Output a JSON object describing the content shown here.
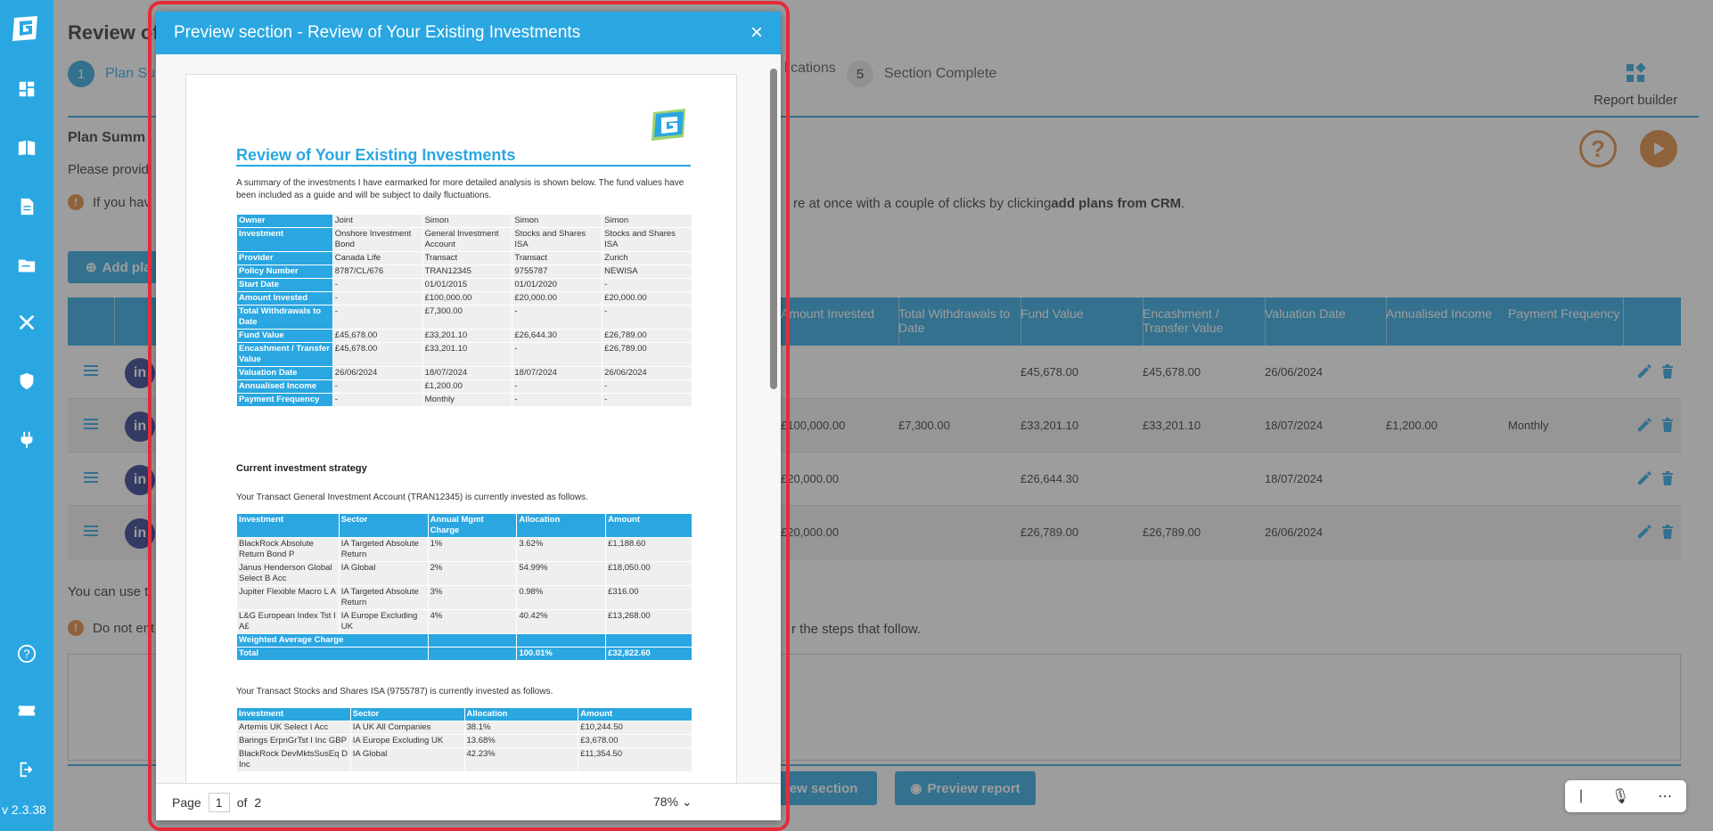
{
  "app": {
    "version": "v 2.3.38",
    "accent": "#2aa7e1",
    "orange": "#e08a3c",
    "highlight": "#e52b3a"
  },
  "sidebar": {
    "icons": [
      "logo-icon",
      "dashboard-icon",
      "book-icon",
      "document-icon",
      "folder-icon",
      "tools-icon",
      "shield-icon",
      "plug-icon",
      "help-icon",
      "ticket-icon",
      "logout-icon"
    ]
  },
  "page": {
    "title": "Review of",
    "steps": [
      {
        "num": "1",
        "label": "Plan Sum"
      },
      {
        "num": "",
        "label": "lications"
      },
      {
        "num": "5",
        "label": "Section Complete"
      }
    ],
    "report_builder": "Report builder",
    "section_title": "Plan Summ",
    "para": "Please provid",
    "info1_start": "If you hav",
    "info1_end": "re at once with a couple of clicks by clicking ",
    "info1_bold": "add plans from CRM",
    "info1_tail": ".",
    "add_button": "Add pla",
    "table": {
      "headers": [
        "Amount Invested",
        "Total Withdrawals to Date",
        "Fund Value",
        "Encashment / Transfer Value",
        "Valuation Date",
        "Annualised Income",
        "Payment Frequency"
      ],
      "rows": [
        {
          "amount": "",
          "withdrawals": "",
          "fund": "£45,678.00",
          "encash": "£45,678.00",
          "valdate": "26/06/2024",
          "income": "",
          "freq": ""
        },
        {
          "amount": "£100,000.00",
          "withdrawals": "£7,300.00",
          "fund": "£33,201.10",
          "encash": "£33,201.10",
          "valdate": "18/07/2024",
          "income": "£1,200.00",
          "freq": "Monthly"
        },
        {
          "amount": "£20,000.00",
          "withdrawals": "",
          "fund": "£26,644.30",
          "encash": "",
          "valdate": "18/07/2024",
          "income": "",
          "freq": ""
        },
        {
          "amount": "£20,000.00",
          "withdrawals": "",
          "fund": "£26,789.00",
          "encash": "£26,789.00",
          "valdate": "26/06/2024",
          "income": "",
          "freq": ""
        }
      ]
    },
    "bottom_text": "You can use t",
    "info2_start": "Do not ent",
    "info2_end": "r the steps that follow.",
    "btn_preview_section": "iew section",
    "btn_preview_report": "Preview report"
  },
  "modal": {
    "title": "Preview section - Review of Your Existing Investments",
    "close": "×",
    "footer": {
      "page_label": "Page",
      "page_value": "1",
      "of_label": "of",
      "total": "2",
      "zoom": "78%"
    }
  },
  "doc": {
    "title": "Review of Your Existing Investments",
    "intro": "A summary of the investments I have earmarked for more detailed analysis is shown below. The fund values have been included as a guide and will be subject to daily fluctuations.",
    "summary": {
      "rows": [
        {
          "k": "Owner",
          "v": [
            "Joint",
            "Simon",
            "Simon",
            "Simon"
          ]
        },
        {
          "k": "Investment",
          "v": [
            "Onshore Investment Bond",
            "General Investment Account",
            "Stocks and Shares ISA",
            "Stocks and Shares ISA"
          ]
        },
        {
          "k": "Provider",
          "v": [
            "Canada Life",
            "Transact",
            "Transact",
            "Zurich"
          ]
        },
        {
          "k": "Policy Number",
          "v": [
            "8787/CL/676",
            "TRAN12345",
            "9755787",
            "NEWISA"
          ]
        },
        {
          "k": "Start Date",
          "v": [
            "-",
            "01/01/2015",
            "01/01/2020",
            "-"
          ]
        },
        {
          "k": "Amount Invested",
          "v": [
            "-",
            "£100,000.00",
            "£20,000.00",
            "£20,000.00"
          ]
        },
        {
          "k": "Total Withdrawals to Date",
          "v": [
            "-",
            "£7,300.00",
            "-",
            "-"
          ]
        },
        {
          "k": "Fund Value",
          "v": [
            "£45,678.00",
            "£33,201.10",
            "£26,644.30",
            "£26,789.00"
          ]
        },
        {
          "k": "Encashment / Transfer Value",
          "v": [
            "£45,678.00",
            "£33,201.10",
            "-",
            "£26,789.00"
          ]
        },
        {
          "k": "Valuation Date",
          "v": [
            "26/06/2024",
            "18/07/2024",
            "18/07/2024",
            "26/06/2024"
          ]
        },
        {
          "k": "Annualised Income",
          "v": [
            "-",
            "£1,200.00",
            "-",
            "-"
          ]
        },
        {
          "k": "Payment Frequency",
          "v": [
            "-",
            "Monthly",
            "-",
            "-"
          ]
        }
      ]
    },
    "strategy_heading": "Current investment strategy",
    "gia_text": "Your Transact General Investment Account (TRAN12345) is currently invested as follows.",
    "gia": {
      "headers": [
        "Investment",
        "Sector",
        "Annual Mgmt Charge",
        "Allocation",
        "Amount"
      ],
      "rows": [
        [
          "BlackRock Absolute Return Bond P",
          "IA Targeted Absolute Return",
          "1%",
          "3.62%",
          "£1,188.60"
        ],
        [
          "Janus Henderson Global Select B Acc",
          "IA Global",
          "2%",
          "54.99%",
          "£18,050.00"
        ],
        [
          "Jupiter Flexible Macro L A",
          "IA Targeted Absolute Return",
          "3%",
          "0.98%",
          "£316.00"
        ],
        [
          "L&G European Index Tst I A£",
          "IA Europe Excluding UK",
          "4%",
          "40.42%",
          "£13,268.00"
        ]
      ],
      "weighted": "Weighted Average Charge",
      "total_label": "Total",
      "total_alloc": "100.01%",
      "total_amount": "£32,822.60"
    },
    "isa_text": "Your Transact Stocks and Shares ISA (9755787) is currently invested as follows.",
    "isa": {
      "headers": [
        "Investment",
        "Sector",
        "Allocation",
        "Amount"
      ],
      "rows": [
        [
          "Artemis UK Select I Acc",
          "IA UK All Companies",
          "38.1%",
          "£10,244.50"
        ],
        [
          "Barings ErpnGrTst I Inc GBP",
          "IA Europe Excluding UK",
          "13.68%",
          "£3,678.00"
        ],
        [
          "BlackRock DevMktsSusEq D Inc",
          "IA Global",
          "42.23%",
          "£11,354.50"
        ]
      ]
    }
  }
}
